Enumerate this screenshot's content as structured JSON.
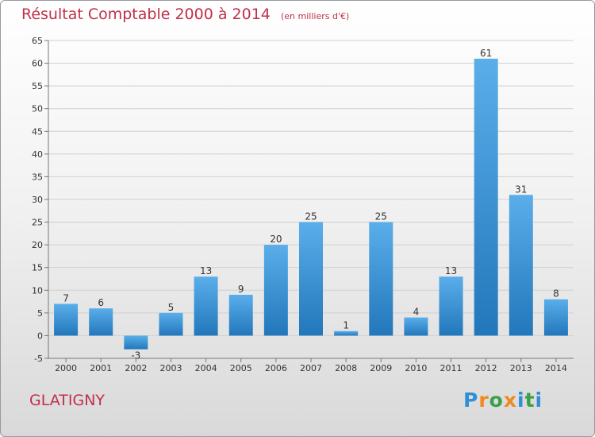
{
  "commune": "GLATIGNY",
  "logo_text": "Proxiti",
  "colors": {
    "bar": "#2f8fd8",
    "title": "#c0304a"
  },
  "chart_data": {
    "type": "bar",
    "title": "Résultat Comptable 2000 à 2014",
    "subtitle": "(en milliers d'€)",
    "categories": [
      "2000",
      "2001",
      "2002",
      "2003",
      "2004",
      "2005",
      "2006",
      "2007",
      "2008",
      "2009",
      "2010",
      "2011",
      "2012",
      "2013",
      "2014"
    ],
    "values": [
      7,
      6,
      -3,
      5,
      13,
      9,
      20,
      25,
      1,
      25,
      4,
      13,
      61,
      31,
      8
    ],
    "ylim": [
      -5,
      65
    ],
    "yticks": [
      -5,
      0,
      5,
      10,
      15,
      20,
      25,
      30,
      35,
      40,
      45,
      50,
      55,
      60,
      65
    ],
    "grid": true,
    "xlabel": "",
    "ylabel": ""
  }
}
